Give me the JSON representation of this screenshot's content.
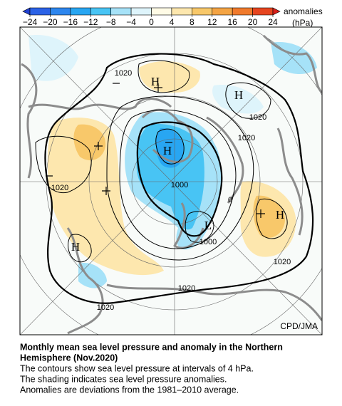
{
  "colorbar": {
    "ticks": [
      {
        "value": -24,
        "label": "−24"
      },
      {
        "value": -20,
        "label": "−20"
      },
      {
        "value": -16,
        "label": "−16"
      },
      {
        "value": -12,
        "label": "−12"
      },
      {
        "value": -8,
        "label": "−8"
      },
      {
        "value": -4,
        "label": "−4"
      },
      0,
      4,
      8,
      12,
      16,
      20,
      24
    ],
    "colors": [
      "#1f3fd0",
      "#2b62e6",
      "#2d86ee",
      "#28a6f2",
      "#48c4f4",
      "#a6e2f8",
      "#def4fb",
      "#fffbe6",
      "#fde7ae",
      "#f8c86a",
      "#f4a444",
      "#f07a2c",
      "#e6451f",
      "#d8201a"
    ],
    "label": "anomalies",
    "unit": "(hPa)"
  },
  "map": {
    "labels": [
      "1020",
      "H",
      "H",
      "1020",
      "1020",
      "H",
      "1020",
      "1000",
      "0",
      "H",
      "L",
      "1000",
      "H",
      "1020",
      "1020",
      "1020"
    ],
    "credit": "CPD/JMA"
  },
  "caption": {
    "title_lines": [
      "Monthly mean sea level pressure and anomaly in the Northern",
      "Hemisphere (Nov.2020)"
    ],
    "lines": [
      "The contours show sea level pressure at intervals of 4 hPa.",
      "The shading indicates sea level pressure anomalies.",
      "Anomalies are deviations from the 1981–2010 average."
    ]
  }
}
